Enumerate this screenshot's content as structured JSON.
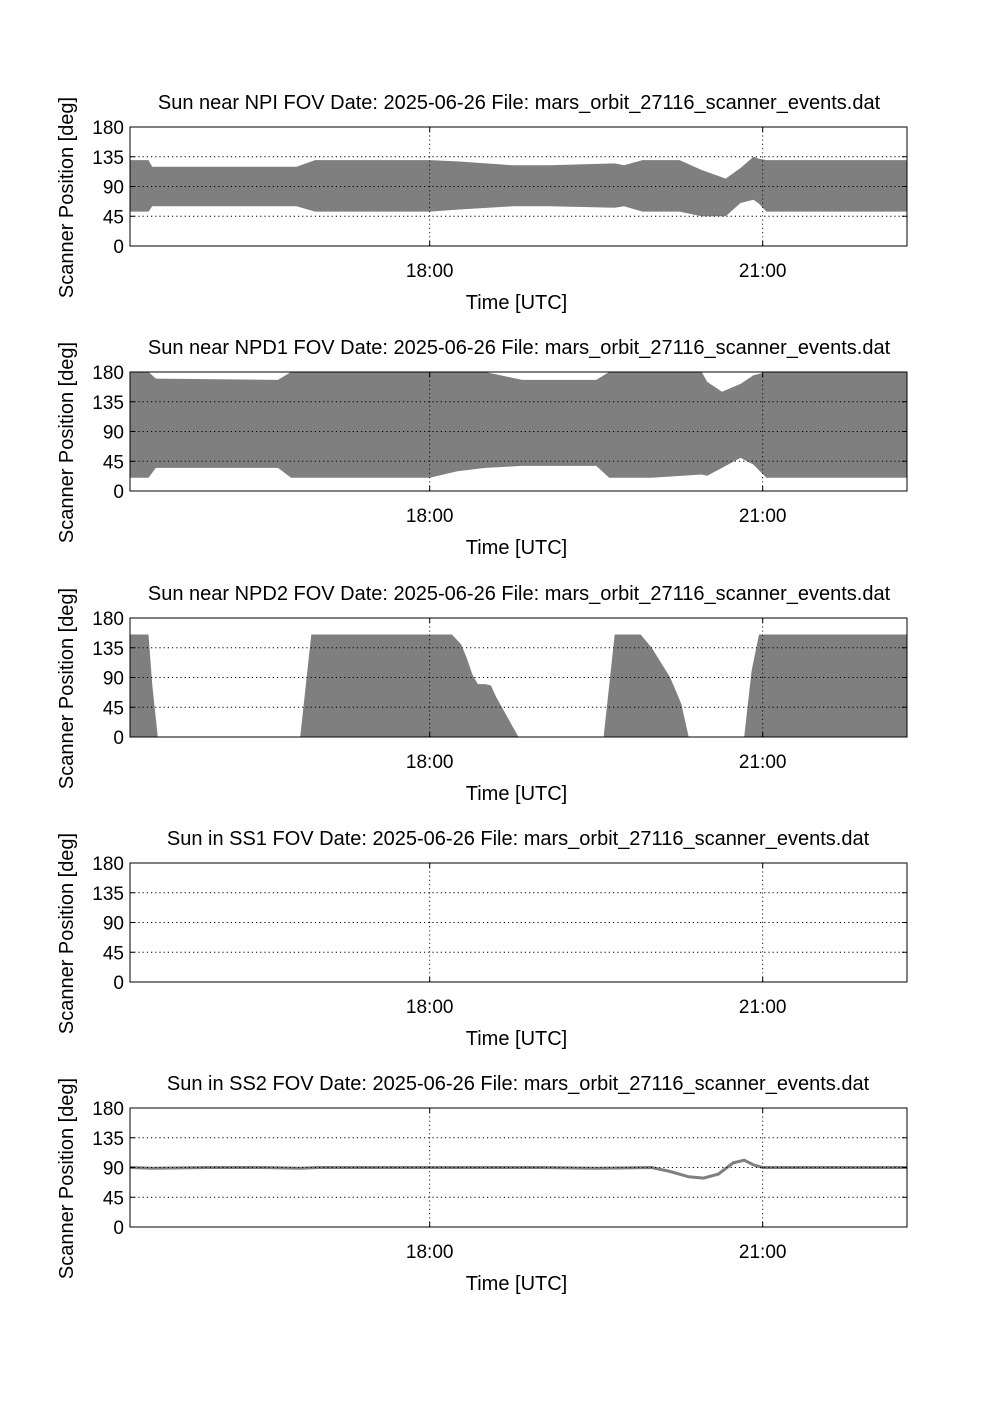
{
  "chart_data": [
    {
      "type": "area",
      "title": "Sun near NPI FOV   Date: 2025-06-26   File: mars_orbit_27116_scanner_events.dat",
      "xlabel": "Time [UTC]",
      "ylabel": "Scanner Position [deg]",
      "xlim": [
        "15:18",
        "22:18"
      ],
      "ylim": [
        0,
        180
      ],
      "yticks": [
        "0",
        "45",
        "90",
        "135",
        "180"
      ],
      "xticks": [
        "18:00",
        "21:00"
      ],
      "grid": true,
      "series": [
        {
          "style": "band",
          "x": [
            "15:18",
            "15:28",
            "15:30",
            "16:48",
            "16:58",
            "18:00",
            "18:15",
            "18:45",
            "19:05",
            "19:40",
            "19:45",
            "19:55",
            "20:15",
            "20:27",
            "20:40",
            "20:48",
            "20:55",
            "20:58",
            "21:02",
            "22:18"
          ],
          "upper": [
            130,
            130,
            120,
            120,
            130,
            130,
            128,
            122,
            122,
            125,
            122,
            130,
            130,
            115,
            102,
            118,
            135,
            132,
            130,
            130
          ],
          "lower": [
            52,
            52,
            60,
            60,
            52,
            52,
            55,
            60,
            60,
            58,
            60,
            52,
            52,
            45,
            45,
            65,
            70,
            64,
            52,
            52
          ]
        }
      ]
    },
    {
      "type": "area",
      "title": "Sun near NPD1 FOV   Date: 2025-06-26   File: mars_orbit_27116_scanner_events.dat",
      "xlabel": "Time [UTC]",
      "ylabel": "Scanner Position [deg]",
      "xlim": [
        "15:18",
        "22:18"
      ],
      "ylim": [
        0,
        180
      ],
      "yticks": [
        "0",
        "45",
        "90",
        "135",
        "180"
      ],
      "xticks": [
        "18:00",
        "21:00"
      ],
      "grid": true,
      "series": [
        {
          "style": "band",
          "x": [
            "15:18",
            "15:28",
            "15:32",
            "16:38",
            "16:45",
            "16:58",
            "18:00",
            "18:15",
            "18:30",
            "18:50",
            "19:30",
            "19:37",
            "20:00",
            "20:27",
            "20:30",
            "20:38",
            "20:48",
            "20:55",
            "21:02",
            "22:18"
          ],
          "upper": [
            180,
            180,
            170,
            168,
            180,
            180,
            180,
            180,
            180,
            168,
            168,
            180,
            180,
            180,
            165,
            150,
            162,
            175,
            180,
            180
          ],
          "lower": [
            20,
            20,
            35,
            35,
            20,
            20,
            20,
            30,
            35,
            38,
            38,
            20,
            20,
            25,
            23,
            35,
            50,
            40,
            20,
            20
          ]
        }
      ]
    },
    {
      "type": "area",
      "title": "Sun near NPD2 FOV   Date: 2025-06-26   File: mars_orbit_27116_scanner_events.dat",
      "xlabel": "Time [UTC]",
      "ylabel": "Scanner Position [deg]",
      "xlim": [
        "15:18",
        "22:18"
      ],
      "ylim": [
        0,
        180
      ],
      "yticks": [
        "0",
        "45",
        "90",
        "135",
        "180"
      ],
      "xticks": [
        "18:00",
        "21:00"
      ],
      "grid": true,
      "series": [
        {
          "style": "band",
          "x": [
            "15:18",
            "15:28",
            "15:30",
            "15:33"
          ],
          "upper": [
            155,
            155,
            80,
            0
          ],
          "lower": [
            0,
            0,
            0,
            0
          ]
        },
        {
          "style": "band",
          "x": [
            "16:50",
            "16:56",
            "18:12",
            "18:17",
            "18:20",
            "18:23",
            "18:26",
            "18:30",
            "18:33",
            "18:36",
            "18:48"
          ],
          "upper": [
            0,
            155,
            155,
            140,
            120,
            95,
            80,
            80,
            78,
            60,
            0
          ],
          "lower": [
            0,
            0,
            0,
            0,
            0,
            0,
            0,
            0,
            0,
            0,
            0
          ]
        },
        {
          "style": "band",
          "x": [
            "19:34",
            "19:40",
            "19:54",
            "20:00",
            "20:10",
            "20:16",
            "20:20"
          ],
          "upper": [
            0,
            155,
            155,
            135,
            90,
            50,
            0
          ],
          "lower": [
            0,
            0,
            0,
            0,
            0,
            0,
            0
          ]
        },
        {
          "style": "band",
          "x": [
            "20:50",
            "20:54",
            "20:58",
            "22:18"
          ],
          "upper": [
            0,
            100,
            155,
            155
          ],
          "lower": [
            0,
            0,
            0,
            0
          ]
        }
      ]
    },
    {
      "type": "line",
      "title": "Sun in SS1 FOV   Date: 2025-06-26   File: mars_orbit_27116_scanner_events.dat",
      "xlabel": "Time [UTC]",
      "ylabel": "Scanner Position [deg]",
      "xlim": [
        "15:18",
        "22:18"
      ],
      "ylim": [
        0,
        180
      ],
      "yticks": [
        "0",
        "45",
        "90",
        "135",
        "180"
      ],
      "xticks": [
        "18:00",
        "21:00"
      ],
      "grid": true,
      "series": []
    },
    {
      "type": "line",
      "title": "Sun in SS2 FOV   Date: 2025-06-26   File: mars_orbit_27116_scanner_events.dat",
      "xlabel": "Time [UTC]",
      "ylabel": "Scanner Position [deg]",
      "xlim": [
        "15:18",
        "22:18"
      ],
      "ylim": [
        0,
        180
      ],
      "yticks": [
        "0",
        "45",
        "90",
        "135",
        "180"
      ],
      "xticks": [
        "18:00",
        "21:00"
      ],
      "grid": true,
      "series": [
        {
          "style": "line",
          "x": [
            "15:18",
            "15:30",
            "16:00",
            "16:30",
            "16:50",
            "17:00",
            "18:00",
            "19:00",
            "19:30",
            "20:00",
            "20:10",
            "20:20",
            "20:28",
            "20:36",
            "20:44",
            "20:50",
            "20:55",
            "21:00",
            "22:18"
          ],
          "y": [
            90,
            89,
            90,
            90,
            89,
            90,
            90,
            90,
            89,
            90,
            84,
            76,
            74,
            80,
            97,
            101,
            94,
            90,
            90
          ]
        }
      ]
    }
  ]
}
